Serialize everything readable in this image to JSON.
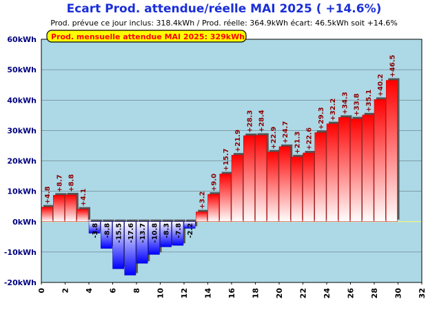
{
  "title": "Ecart Prod. attendue/réelle MAI 2025 ( +14.6%)",
  "subtitle": "Prod. prévue ce jour inclus: 318.4kWh / Prod. réelle: 364.9kWh écart: 46.5kWh soit +14.6%",
  "monthly_badge": "Prod. mensuelle attendue MAI 2025: 329kWh",
  "colors": {
    "positive": "#ff0000",
    "negative": "#0000ff",
    "plot_bg": "#add8e6",
    "title": "#1a2fd8",
    "pos_label": "#8b0000",
    "neg_label": "#000000",
    "badge_bg": "#ffff00",
    "badge_text": "#ff0000"
  },
  "chart_data": {
    "type": "bar",
    "title": "Ecart Prod. attendue/réelle MAI 2025 ( +14.6%)",
    "x": [
      0,
      1,
      2,
      3,
      4,
      5,
      6,
      7,
      8,
      9,
      10,
      11,
      12,
      13,
      14,
      15,
      16,
      17,
      18,
      19,
      20,
      21,
      22,
      23,
      24,
      25,
      26,
      27,
      28,
      29
    ],
    "values": [
      4.8,
      8.7,
      8.8,
      4.1,
      -3.8,
      -8.8,
      -15.5,
      -17.6,
      -13.7,
      -10.8,
      -8.3,
      -7.8,
      -2.2,
      3.2,
      9.0,
      15.7,
      21.9,
      28.3,
      28.4,
      22.9,
      24.7,
      21.3,
      22.6,
      29.3,
      32.2,
      34.3,
      33.8,
      35.1,
      40.2,
      46.5
    ],
    "labels": [
      "+4.8",
      "+8.7",
      "+8.8",
      "+4.1",
      "-3.8",
      "-8.8",
      "-15.5",
      "-17.6",
      "-13.7",
      "-10.8",
      "-8.3",
      "-7.8",
      "-2.2",
      "+3.2",
      "+9.0",
      "+15.7",
      "+21.9",
      "+28.3",
      "+28.4",
      "+22.9",
      "+24.7",
      "+21.3",
      "+22.6",
      "+29.3",
      "+32.2",
      "+34.3",
      "+33.8",
      "+35.1",
      "+40.2",
      "+46.5"
    ],
    "ylim": [
      -20,
      60
    ],
    "xlim": [
      0,
      32
    ],
    "yticks": [
      -20,
      -10,
      0,
      10,
      20,
      30,
      40,
      50,
      60
    ],
    "ytick_labels": [
      "-20kWh",
      "-10kWh",
      "0kWh",
      "10kWh",
      "20kWh",
      "30kWh",
      "40kWh",
      "50kWh",
      "60kWh"
    ],
    "xticks": [
      0,
      2,
      4,
      6,
      8,
      10,
      12,
      14,
      16,
      18,
      20,
      22,
      24,
      26,
      28,
      30,
      32
    ],
    "xtick_labels": [
      "0",
      "2",
      "4",
      "6",
      "8",
      "10",
      "12",
      "14",
      "16",
      "18",
      "20",
      "22",
      "24",
      "26",
      "28",
      "30",
      "32"
    ],
    "grid": true
  }
}
